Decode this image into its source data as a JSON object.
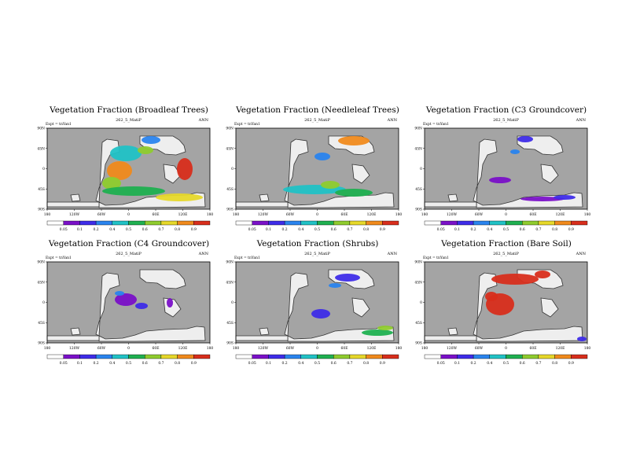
{
  "page": {
    "background": "#ffffff"
  },
  "palette": {
    "ocean": "#a4a4a4",
    "land": "#eeeeee",
    "coast": "#333333",
    "colorbar": [
      "#ffffff",
      "#7a10c8",
      "#3e2ce8",
      "#2a84ee",
      "#21c2c6",
      "#1fb050",
      "#8fcc2e",
      "#e6d82a",
      "#f08a1c",
      "#d82e1c"
    ]
  },
  "panels": [
    {
      "title": "Vegetation Fraction (Broadleaf Trees)",
      "exp_label": "Expt = tnYan1",
      "run_label": "262_5_MatiP",
      "season": "ANN",
      "cbar_ticks": [
        "0.05",
        "0.1",
        "0.2",
        "0.4",
        "0.5",
        "0.6",
        "0.7",
        "0.8",
        "0.9"
      ]
    },
    {
      "title": "Vegetation Fraction (Needleleaf Trees)",
      "exp_label": "Expt = tnYan1",
      "run_label": "262_5_MatiP",
      "season": "ANN",
      "cbar_ticks": [
        "0.05",
        "0.1",
        "0.2",
        "0.4",
        "0.5",
        "0.6",
        "0.7",
        "0.8",
        "0.9"
      ]
    },
    {
      "title": "Vegetation Fraction (C3 Groundcover)",
      "exp_label": "Expt = tnYan1",
      "run_label": "262_5_MatiP",
      "season": "ANN",
      "cbar_ticks": [
        "0.05",
        "0.1",
        "0.2",
        "0.4",
        "0.5",
        "0.6",
        "0.7",
        "0.8",
        "0.9"
      ]
    },
    {
      "title": "Vegetation Fraction (C4 Groundcover)",
      "exp_label": "Expt = tnYan1",
      "run_label": "262_5_MatiP",
      "season": "ANN",
      "cbar_ticks": [
        "0.05",
        "0.1",
        "0.2",
        "0.4",
        "0.5",
        "0.6",
        "0.7",
        "0.8",
        "0.9"
      ]
    },
    {
      "title": "Vegetation Fraction (Shrubs)",
      "exp_label": "Expt = tnYan1",
      "run_label": "262_5_MatiP",
      "season": "ANN",
      "cbar_ticks": [
        "0.05",
        "0.1",
        "0.2",
        "0.4",
        "0.5",
        "0.6",
        "0.7",
        "0.8",
        "0.9"
      ]
    },
    {
      "title": "Vegetation Fraction (Bare Soil)",
      "exp_label": "Expt = tnYan1",
      "run_label": "262_5_MatiP",
      "season": "ANN",
      "cbar_ticks": [
        "0.05",
        "0.1",
        "0.2",
        "0.4",
        "0.5",
        "0.6",
        "0.7",
        "0.8",
        "0.9"
      ]
    }
  ],
  "chart_data": [
    {
      "type": "heatmap",
      "title": "Vegetation Fraction (Broadleaf Trees)",
      "subtitle": "262_5_MatiP",
      "x_ticks": [
        "180",
        "120W",
        "60W",
        "0",
        "60E",
        "120E",
        "180"
      ],
      "y_ticks": [
        "90N",
        "45N",
        "0",
        "45S",
        "90S"
      ],
      "colorbar_ticks": [
        "0.05",
        "0.1",
        "0.2",
        "0.4",
        "0.5",
        "0.6",
        "0.7",
        "0.8",
        "0.9"
      ],
      "xlim": [
        -180,
        180
      ],
      "ylim": [
        -90,
        90
      ]
    },
    {
      "type": "heatmap",
      "title": "Vegetation Fraction (Needleleaf Trees)",
      "subtitle": "262_5_MatiP",
      "x_ticks": [
        "180",
        "120W",
        "60W",
        "0",
        "60E",
        "120E",
        "180"
      ],
      "y_ticks": [
        "90N",
        "45N",
        "0",
        "45S",
        "90S"
      ],
      "colorbar_ticks": [
        "0.05",
        "0.1",
        "0.2",
        "0.4",
        "0.5",
        "0.6",
        "0.7",
        "0.8",
        "0.9"
      ],
      "xlim": [
        -180,
        180
      ],
      "ylim": [
        -90,
        90
      ]
    },
    {
      "type": "heatmap",
      "title": "Vegetation Fraction (C3 Groundcover)",
      "subtitle": "262_5_MatiP",
      "x_ticks": [
        "180",
        "120W",
        "60W",
        "0",
        "60E",
        "120E",
        "180"
      ],
      "y_ticks": [
        "90N",
        "45N",
        "0",
        "45S",
        "90S"
      ],
      "colorbar_ticks": [
        "0.05",
        "0.1",
        "0.2",
        "0.4",
        "0.5",
        "0.6",
        "0.7",
        "0.8",
        "0.9"
      ],
      "xlim": [
        -180,
        180
      ],
      "ylim": [
        -90,
        90
      ]
    },
    {
      "type": "heatmap",
      "title": "Vegetation Fraction (C4 Groundcover)",
      "subtitle": "262_5_MatiP",
      "x_ticks": [
        "180",
        "120W",
        "60W",
        "0",
        "60E",
        "120E",
        "180"
      ],
      "y_ticks": [
        "90N",
        "45N",
        "0",
        "45S",
        "90S"
      ],
      "colorbar_ticks": [
        "0.05",
        "0.1",
        "0.2",
        "0.4",
        "0.5",
        "0.6",
        "0.7",
        "0.8",
        "0.9"
      ],
      "xlim": [
        -180,
        180
      ],
      "ylim": [
        -90,
        90
      ]
    },
    {
      "type": "heatmap",
      "title": "Vegetation Fraction (Shrubs)",
      "subtitle": "262_5_MatiP",
      "x_ticks": [
        "180",
        "120W",
        "60W",
        "0",
        "60E",
        "120E",
        "180"
      ],
      "y_ticks": [
        "90N",
        "45N",
        "0",
        "45S",
        "90S"
      ],
      "colorbar_ticks": [
        "0.05",
        "0.1",
        "0.2",
        "0.4",
        "0.5",
        "0.6",
        "0.7",
        "0.8",
        "0.9"
      ],
      "xlim": [
        -180,
        180
      ],
      "ylim": [
        -90,
        90
      ]
    },
    {
      "type": "heatmap",
      "title": "Vegetation Fraction (Bare Soil)",
      "subtitle": "262_5_MatiP",
      "x_ticks": [
        "180",
        "120W",
        "60W",
        "0",
        "60E",
        "120E",
        "180"
      ],
      "y_ticks": [
        "90N",
        "45N",
        "0",
        "45S",
        "90S"
      ],
      "colorbar_ticks": [
        "0.05",
        "0.1",
        "0.2",
        "0.4",
        "0.5",
        "0.6",
        "0.7",
        "0.8",
        "0.9"
      ],
      "xlim": [
        -180,
        180
      ],
      "ylim": [
        -90,
        90
      ]
    }
  ]
}
